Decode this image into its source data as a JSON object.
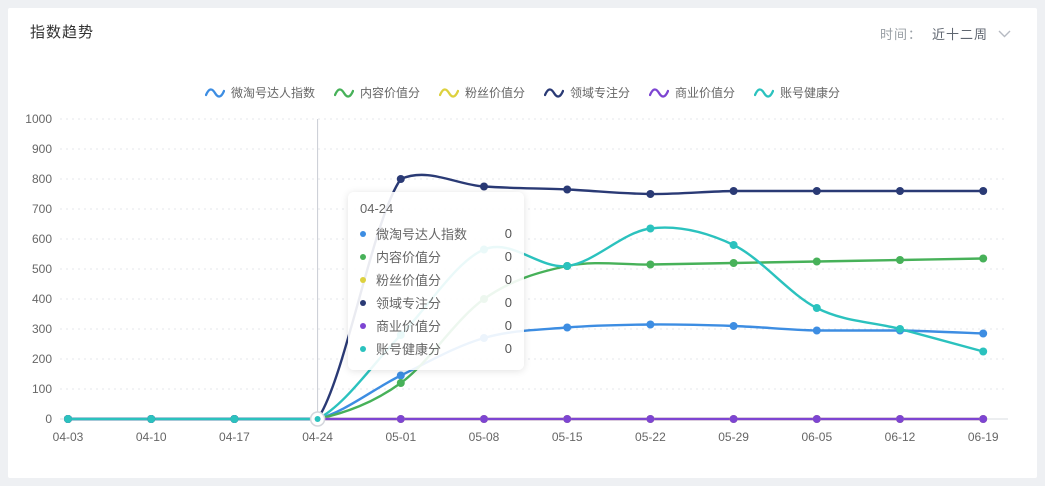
{
  "header": {
    "title": "指数趋势",
    "time_label": "时间：",
    "time_value": "近十二周"
  },
  "icons": {
    "time_select_chevron": "chevron-down",
    "legend_series_icon": "wave-line"
  },
  "colors": {
    "page_bg": "#eef0f3",
    "card_bg": "#ffffff",
    "axis_label": "#666666",
    "grid_line": "#e5e7eb",
    "axis_line": "#d9dce1",
    "axis_pointer": "#c9ccd4",
    "series_blue": "#3d8de2",
    "series_green": "#47b159",
    "series_yellow": "#ddd13e",
    "series_navy": "#2a3a75",
    "series_purple": "#7d45d2",
    "series_teal": "#2bc2be"
  },
  "legend": {
    "items": [
      {
        "label": "微淘号达人指数",
        "color": "#3d8de2"
      },
      {
        "label": "内容价值分",
        "color": "#47b159"
      },
      {
        "label": "粉丝价值分",
        "color": "#ddd13e"
      },
      {
        "label": "领域专注分",
        "color": "#2a3a75"
      },
      {
        "label": "商业价值分",
        "color": "#7d45d2"
      },
      {
        "label": "账号健康分",
        "color": "#2bc2be"
      }
    ]
  },
  "chart_data": {
    "type": "line",
    "title": "指数趋势",
    "smooth": true,
    "grid": true,
    "legend_position": "top",
    "categories": [
      "04-03",
      "04-10",
      "04-17",
      "04-24",
      "05-01",
      "05-08",
      "05-15",
      "05-22",
      "05-29",
      "06-05",
      "06-12",
      "06-19"
    ],
    "series": [
      {
        "name": "微淘号达人指数",
        "color": "#3d8de2",
        "values": [
          0,
          0,
          0,
          0,
          145,
          270,
          305,
          315,
          310,
          295,
          295,
          285
        ]
      },
      {
        "name": "内容价值分",
        "color": "#47b159",
        "values": [
          0,
          0,
          0,
          0,
          120,
          400,
          510,
          515,
          520,
          525,
          530,
          535
        ]
      },
      {
        "name": "粉丝价值分",
        "color": "#ddd13e",
        "values": [
          0,
          0,
          0,
          0,
          0,
          0,
          0,
          0,
          0,
          0,
          0,
          0
        ]
      },
      {
        "name": "领域专注分",
        "color": "#2a3a75",
        "values": [
          0,
          0,
          0,
          0,
          800,
          775,
          765,
          750,
          760,
          760,
          760,
          760
        ]
      },
      {
        "name": "商业价值分",
        "color": "#7d45d2",
        "values": [
          0,
          0,
          0,
          0,
          0,
          0,
          0,
          0,
          0,
          0,
          0,
          0
        ]
      },
      {
        "name": "账号健康分",
        "color": "#2bc2be",
        "values": [
          0,
          0,
          0,
          0,
          280,
          565,
          510,
          635,
          580,
          370,
          300,
          225
        ]
      }
    ],
    "xlabel": "",
    "ylabel": "",
    "ylim": [
      0,
      1000
    ],
    "yticks": [
      0,
      100,
      200,
      300,
      400,
      500,
      600,
      700,
      800,
      900,
      1000
    ]
  },
  "tooltip": {
    "title": "04-24",
    "hover_index": 3,
    "rows": [
      {
        "label": "微淘号达人指数",
        "value": "0"
      },
      {
        "label": "内容价值分",
        "value": "0"
      },
      {
        "label": "粉丝价值分",
        "value": "0"
      },
      {
        "label": "领域专注分",
        "value": "0"
      },
      {
        "label": "商业价值分",
        "value": "0"
      },
      {
        "label": "账号健康分",
        "value": "0"
      }
    ]
  }
}
